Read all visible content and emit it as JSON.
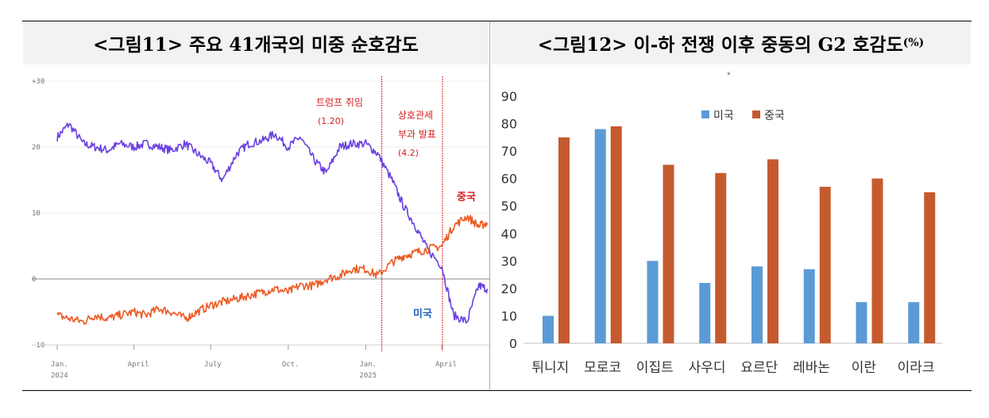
{
  "figure11": {
    "title": "<그림11> 주요 41개국의 미중 순호감도",
    "annotations": {
      "trump": [
        "트럼프 취임",
        "(1.20)"
      ],
      "tariff": [
        "상호관세",
        "부과 발표",
        "(4.2)"
      ]
    },
    "colors": {
      "usa": "#6a3fe0",
      "china": "#ee5a24",
      "annot": "#d42020",
      "usa_label": "#1f5fbf"
    },
    "chart_data": {
      "type": "line",
      "title": "",
      "xlabel": "",
      "ylabel": "",
      "ylim": [
        -10,
        30
      ],
      "yticks": [
        "+30",
        "20",
        "10",
        "0",
        "−10"
      ],
      "ytick_values": [
        30,
        20,
        10,
        0,
        -10
      ],
      "xticks": [
        {
          "label": "Jan.",
          "sub": "2024",
          "date": "2024-01-01"
        },
        {
          "label": "April",
          "sub": "",
          "date": "2024-04-01"
        },
        {
          "label": "July",
          "sub": "",
          "date": "2024-07-01"
        },
        {
          "label": "Oct.",
          "sub": "",
          "date": "2024-10-01"
        },
        {
          "label": "Jan.",
          "sub": "2025",
          "date": "2025-01-01"
        },
        {
          "label": "April",
          "sub": "",
          "date": "2025-04-01"
        }
      ],
      "events": [
        {
          "date": "2025-01-20",
          "label": "트럼프 취임 (1.20)"
        },
        {
          "date": "2025-04-02",
          "label": "상호관세 부과 발표 (4.2)"
        }
      ],
      "series": [
        {
          "name": "미국",
          "x": [
            "2024-01-01",
            "2024-01-15",
            "2024-02-01",
            "2024-02-15",
            "2024-03-01",
            "2024-03-15",
            "2024-04-01",
            "2024-04-15",
            "2024-05-01",
            "2024-05-15",
            "2024-06-01",
            "2024-06-15",
            "2024-07-01",
            "2024-07-15",
            "2024-08-01",
            "2024-08-15",
            "2024-09-01",
            "2024-09-15",
            "2024-10-01",
            "2024-10-15",
            "2024-11-01",
            "2024-11-15",
            "2024-12-01",
            "2024-12-15",
            "2025-01-01",
            "2025-01-15",
            "2025-02-01",
            "2025-02-15",
            "2025-03-01",
            "2025-03-15",
            "2025-04-01",
            "2025-04-15",
            "2025-05-01",
            "2025-05-15",
            "2025-05-25"
          ],
          "values": [
            21.5,
            23.5,
            20.5,
            20.0,
            19.5,
            20.5,
            20.0,
            20.5,
            20.0,
            19.5,
            20.5,
            19.0,
            17.5,
            15.0,
            19.0,
            20.5,
            21.0,
            22.0,
            20.0,
            21.5,
            18.0,
            16.0,
            20.0,
            20.5,
            20.5,
            19.0,
            15.0,
            11.0,
            8.0,
            4.5,
            2.0,
            -5.5,
            -6.5,
            -1.0,
            -1.5
          ]
        },
        {
          "name": "중국",
          "x": [
            "2024-01-01",
            "2024-01-15",
            "2024-02-01",
            "2024-02-15",
            "2024-03-01",
            "2024-03-15",
            "2024-04-01",
            "2024-04-15",
            "2024-05-01",
            "2024-05-15",
            "2024-06-01",
            "2024-06-15",
            "2024-07-01",
            "2024-07-15",
            "2024-08-01",
            "2024-08-15",
            "2024-09-01",
            "2024-09-15",
            "2024-10-01",
            "2024-10-15",
            "2024-11-01",
            "2024-11-15",
            "2024-12-01",
            "2024-12-15",
            "2025-01-01",
            "2025-01-15",
            "2025-02-01",
            "2025-02-15",
            "2025-03-01",
            "2025-03-15",
            "2025-04-01",
            "2025-04-15",
            "2025-05-01",
            "2025-05-15",
            "2025-05-25"
          ],
          "values": [
            -5.5,
            -6.0,
            -6.5,
            -5.5,
            -6.0,
            -5.5,
            -5.0,
            -5.5,
            -4.5,
            -5.0,
            -6.0,
            -5.0,
            -4.0,
            -3.5,
            -3.0,
            -2.5,
            -2.0,
            -1.5,
            -2.0,
            -1.0,
            -1.0,
            0.0,
            0.5,
            1.5,
            1.5,
            0.5,
            2.5,
            3.5,
            4.0,
            4.5,
            5.0,
            8.0,
            9.5,
            8.0,
            8.5
          ]
        }
      ]
    }
  },
  "figure12": {
    "title": "<그림12> 이-하 전쟁 이후 중동의 G2 호감도",
    "title_suffix": "(%)",
    "stray_mark": "*",
    "chart_data": {
      "type": "bar",
      "title": "",
      "xlabel": "",
      "ylabel": "",
      "ylim": [
        0,
        90
      ],
      "yticks": [
        0,
        10,
        20,
        30,
        40,
        50,
        60,
        70,
        80,
        90
      ],
      "legend_position": "top-center",
      "categories": [
        "튀니지",
        "모로코",
        "이집트",
        "사우디",
        "요르단",
        "레바논",
        "이란",
        "이라크"
      ],
      "series": [
        {
          "name": "미국",
          "color": "#5b9bd5",
          "values": [
            10,
            78,
            30,
            22,
            28,
            27,
            15,
            15
          ]
        },
        {
          "name": "중국",
          "color": "#c55a2e",
          "values": [
            75,
            79,
            65,
            62,
            67,
            57,
            60,
            55
          ]
        }
      ]
    }
  }
}
